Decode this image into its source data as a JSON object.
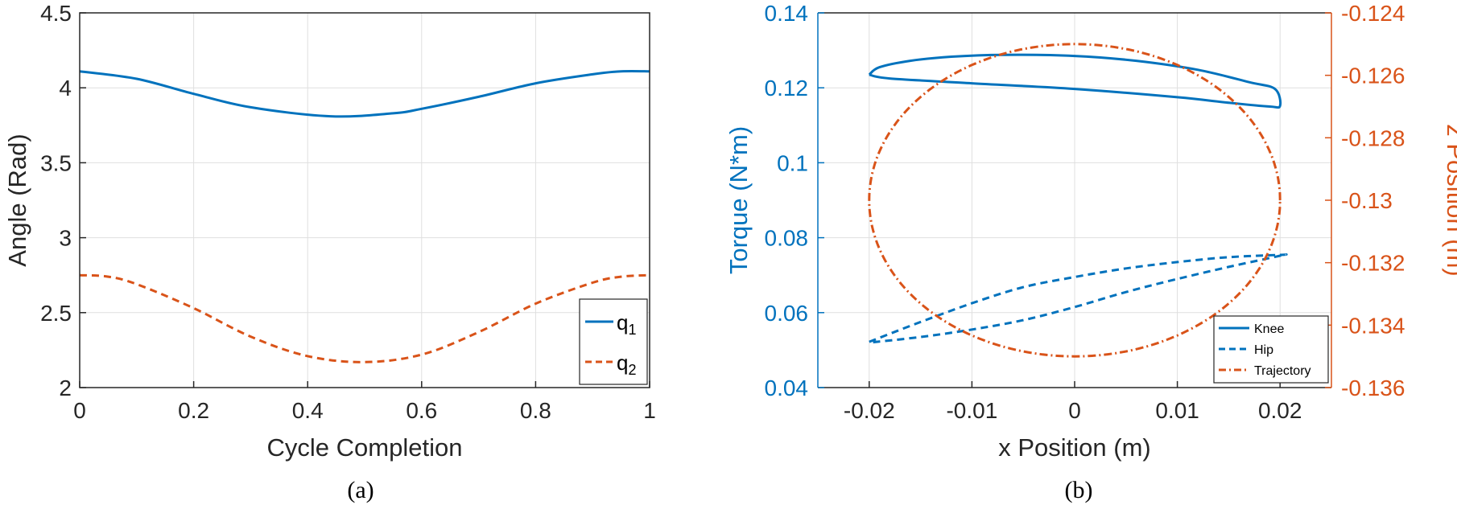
{
  "colors": {
    "blue": "#0072BD",
    "orange": "#D95319",
    "axis": "#262626",
    "grid": "#dfdfdf"
  },
  "chart_data": [
    {
      "type": "line",
      "caption": "(a)",
      "xlabel": "Cycle Completion",
      "ylabel": "Angle (Rad)",
      "xlim": [
        0,
        1
      ],
      "ylim": [
        2,
        4.5
      ],
      "xticks": [
        0,
        0.2,
        0.4,
        0.6,
        0.8,
        1
      ],
      "xtick_labels": [
        "0",
        "0.2",
        "0.4",
        "0.6",
        "0.8",
        "1"
      ],
      "yticks": [
        2,
        2.5,
        3,
        3.5,
        4,
        4.5
      ],
      "ytick_labels": [
        "2",
        "2.5",
        "3",
        "3.5",
        "4",
        "4.5"
      ],
      "grid": true,
      "legend_position": "bottom-right",
      "series": [
        {
          "name": "q1",
          "label_main": "q",
          "label_sub": "1",
          "style": "solid",
          "color": "#0072BD",
          "x": [
            0,
            0.1,
            0.2,
            0.3,
            0.44,
            0.55,
            0.6,
            0.7,
            0.8,
            0.9,
            0.95,
            1
          ],
          "y": [
            4.11,
            4.06,
            3.96,
            3.87,
            3.81,
            3.83,
            3.86,
            3.94,
            4.03,
            4.09,
            4.11,
            4.11
          ]
        },
        {
          "name": "q2",
          "label_main": "q",
          "label_sub": "2",
          "style": "dashed",
          "color": "#D95319",
          "x": [
            0,
            0.05,
            0.1,
            0.2,
            0.3,
            0.4,
            0.5,
            0.6,
            0.7,
            0.8,
            0.9,
            0.95,
            1
          ],
          "y": [
            2.75,
            2.74,
            2.69,
            2.53,
            2.34,
            2.21,
            2.17,
            2.22,
            2.37,
            2.56,
            2.7,
            2.74,
            2.75
          ]
        }
      ]
    },
    {
      "type": "line",
      "caption": "(b)",
      "xlabel": "x Position (m)",
      "ylabel_left": "Torque (N*m)",
      "ylabel_right": "z Position (m)",
      "xlim": [
        -0.025,
        0.025
      ],
      "ylim_left": [
        0.04,
        0.14
      ],
      "ylim_right": [
        -0.136,
        -0.124
      ],
      "xticks": [
        -0.02,
        -0.01,
        0,
        0.01,
        0.02
      ],
      "xtick_labels": [
        "-0.02",
        "-0.01",
        "0",
        "0.01",
        "0.02"
      ],
      "yticks_left": [
        0.04,
        0.06,
        0.08,
        0.1,
        0.12,
        0.14
      ],
      "ytick_labels_left": [
        "0.04",
        "0.06",
        "0.08",
        "0.1",
        "0.12",
        "0.14"
      ],
      "yticks_right": [
        -0.136,
        -0.134,
        -0.132,
        -0.13,
        -0.128,
        -0.126,
        -0.124
      ],
      "ytick_labels_right": [
        "-0.136",
        "-0.134",
        "-0.132",
        "-0.13",
        "-0.128",
        "-0.126",
        "-0.124"
      ],
      "grid": true,
      "legend_position": "bottom-right",
      "series": [
        {
          "name": "Knee",
          "axis": "left",
          "style": "solid",
          "color": "#0072BD",
          "x": [
            -0.02,
            -0.019,
            -0.016,
            -0.012,
            -0.007,
            0,
            0.006,
            0.012,
            0.017,
            0.0195,
            0.02,
            0.019,
            0.015,
            0.01,
            0,
            -0.01,
            -0.018,
            -0.02
          ],
          "y": [
            0.1235,
            0.1255,
            0.1272,
            0.1283,
            0.1288,
            0.1285,
            0.1272,
            0.1248,
            0.1215,
            0.1197,
            0.1152,
            0.115,
            0.116,
            0.1175,
            0.1197,
            0.1212,
            0.1225,
            0.1235
          ]
        },
        {
          "name": "Hip",
          "axis": "left",
          "style": "dashed",
          "color": "#0072BD",
          "x": [
            -0.02,
            -0.015,
            -0.01,
            -0.005,
            0,
            0.005,
            0.01,
            0.015,
            0.02,
            0.02,
            0.015,
            0.01,
            0.005,
            0,
            -0.005,
            -0.01,
            -0.015,
            -0.02
          ],
          "y": [
            0.0522,
            0.0575,
            0.0625,
            0.0668,
            0.0695,
            0.0718,
            0.0735,
            0.0748,
            0.0754,
            0.0752,
            0.0722,
            0.069,
            0.0655,
            0.0615,
            0.058,
            0.0555,
            0.0535,
            0.052
          ]
        },
        {
          "name": "Trajectory",
          "axis": "right",
          "style": "dashdot",
          "color": "#D95319",
          "param": {
            "cx": 0,
            "cz": -0.13,
            "rx": 0.02,
            "rz": 0.005
          }
        }
      ]
    }
  ]
}
